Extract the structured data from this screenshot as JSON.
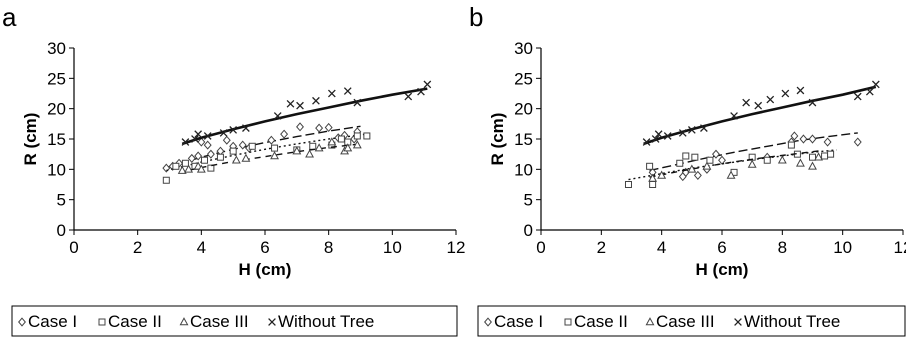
{
  "chart_data": [
    {
      "type": "scatter",
      "panel": "a",
      "xlabel": "H (cm)",
      "ylabel": "R (cm)",
      "xlim": [
        0,
        12
      ],
      "ylim": [
        0,
        30
      ],
      "xticks": [
        0,
        2,
        4,
        6,
        8,
        10,
        12
      ],
      "yticks": [
        0,
        5,
        10,
        15,
        20,
        25,
        30
      ],
      "grid": false,
      "legend_position": "bottom",
      "series": [
        {
          "name": "Case I",
          "marker": "diamond",
          "trend": [
            [
              2.9,
              10.3
            ],
            [
              4.0,
              12.0
            ],
            [
              5.0,
              13.3
            ],
            [
              6.0,
              14.4
            ],
            [
              7.0,
              15.4
            ],
            [
              8.0,
              16.3
            ],
            [
              9.0,
              17.1
            ]
          ],
          "points": [
            [
              2.9,
              10.2
            ],
            [
              3.1,
              10.5
            ],
            [
              3.3,
              11.0
            ],
            [
              3.7,
              11.8
            ],
            [
              3.9,
              12.2
            ],
            [
              4.0,
              14.5
            ],
            [
              4.2,
              14.0
            ],
            [
              4.3,
              12.5
            ],
            [
              4.6,
              13.0
            ],
            [
              4.8,
              14.8
            ],
            [
              5.0,
              13.8
            ],
            [
              5.3,
              14.0
            ],
            [
              5.5,
              13.5
            ],
            [
              6.2,
              14.8
            ],
            [
              6.6,
              15.8
            ],
            [
              7.1,
              17.0
            ],
            [
              7.7,
              16.8
            ],
            [
              8.0,
              16.9
            ],
            [
              8.3,
              15.2
            ],
            [
              8.5,
              15.6
            ],
            [
              8.8,
              15.0
            ],
            [
              8.9,
              16.2
            ]
          ]
        },
        {
          "name": "Case II",
          "marker": "square",
          "trend": [
            [
              2.9,
              9.8
            ],
            [
              4.0,
              11.2
            ],
            [
              5.0,
              12.3
            ],
            [
              6.0,
              13.3
            ],
            [
              7.0,
              14.2
            ],
            [
              8.0,
              15.0
            ],
            [
              9.2,
              15.8
            ]
          ],
          "points": [
            [
              2.9,
              8.2
            ],
            [
              3.2,
              10.5
            ],
            [
              3.5,
              11.0
            ],
            [
              3.8,
              10.5
            ],
            [
              4.1,
              11.5
            ],
            [
              4.3,
              10.2
            ],
            [
              4.6,
              12.0
            ],
            [
              5.0,
              13.0
            ],
            [
              5.6,
              13.8
            ],
            [
              6.3,
              13.5
            ],
            [
              7.0,
              13.2
            ],
            [
              7.5,
              13.8
            ],
            [
              8.1,
              14.0
            ],
            [
              8.4,
              15.0
            ],
            [
              8.6,
              14.5
            ],
            [
              8.9,
              15.5
            ],
            [
              9.2,
              15.5
            ]
          ]
        },
        {
          "name": "Case III",
          "marker": "triangle",
          "trend": [
            [
              3.3,
              9.5
            ],
            [
              4.0,
              10.3
            ],
            [
              5.0,
              11.3
            ],
            [
              6.0,
              12.1
            ],
            [
              7.0,
              12.9
            ],
            [
              8.0,
              13.6
            ],
            [
              9.0,
              14.2
            ]
          ],
          "points": [
            [
              3.4,
              9.8
            ],
            [
              3.6,
              10.0
            ],
            [
              3.9,
              10.5
            ],
            [
              4.0,
              10.0
            ],
            [
              5.1,
              11.5
            ],
            [
              5.4,
              11.8
            ],
            [
              6.3,
              12.2
            ],
            [
              7.0,
              13.0
            ],
            [
              7.4,
              12.5
            ],
            [
              7.7,
              13.5
            ],
            [
              8.1,
              14.5
            ],
            [
              8.5,
              13.0
            ],
            [
              8.6,
              13.5
            ],
            [
              8.9,
              14.0
            ]
          ]
        },
        {
          "name": "Without Tree",
          "marker": "x",
          "trend": [
            [
              3.4,
              14.2
            ],
            [
              4.0,
              15.2
            ],
            [
              5.0,
              16.6
            ],
            [
              6.0,
              17.9
            ],
            [
              7.0,
              19.1
            ],
            [
              8.0,
              20.2
            ],
            [
              9.0,
              21.3
            ],
            [
              10.0,
              22.3
            ],
            [
              11.1,
              23.3
            ]
          ],
          "points": [
            [
              3.5,
              14.5
            ],
            [
              3.8,
              15.0
            ],
            [
              3.9,
              15.8
            ],
            [
              4.2,
              15.5
            ],
            [
              4.7,
              16.0
            ],
            [
              5.0,
              16.5
            ],
            [
              5.4,
              16.8
            ],
            [
              6.4,
              18.8
            ],
            [
              6.8,
              20.8
            ],
            [
              7.1,
              20.5
            ],
            [
              7.6,
              21.3
            ],
            [
              8.1,
              22.5
            ],
            [
              8.6,
              22.9
            ],
            [
              8.9,
              21.0
            ],
            [
              10.5,
              22.0
            ],
            [
              10.9,
              22.8
            ],
            [
              11.1,
              24.0
            ]
          ]
        }
      ]
    },
    {
      "type": "scatter",
      "panel": "b",
      "xlabel": "H (cm)",
      "ylabel": "R (cm)",
      "xlim": [
        0,
        12
      ],
      "ylim": [
        0,
        30
      ],
      "xticks": [
        0,
        2,
        4,
        6,
        8,
        10,
        12
      ],
      "yticks": [
        0,
        5,
        10,
        15,
        20,
        25,
        30
      ],
      "grid": false,
      "legend_position": "bottom",
      "series": [
        {
          "name": "Case I",
          "marker": "diamond",
          "trend": [
            [
              3.6,
              9.8
            ],
            [
              4.5,
              10.8
            ],
            [
              5.5,
              11.9
            ],
            [
              6.5,
              12.9
            ],
            [
              7.5,
              13.8
            ],
            [
              8.5,
              14.7
            ],
            [
              9.5,
              15.4
            ],
            [
              10.5,
              16.0
            ]
          ],
          "points": [
            [
              3.7,
              9.5
            ],
            [
              4.7,
              8.8
            ],
            [
              4.8,
              9.5
            ],
            [
              5.2,
              9.0
            ],
            [
              5.5,
              10.0
            ],
            [
              5.8,
              12.5
            ],
            [
              6.0,
              11.5
            ],
            [
              7.5,
              12.0
            ],
            [
              8.3,
              14.5
            ],
            [
              8.4,
              15.5
            ],
            [
              8.7,
              15.0
            ],
            [
              9.0,
              15.0
            ],
            [
              9.5,
              14.5
            ],
            [
              10.5,
              14.5
            ]
          ]
        },
        {
          "name": "Case II",
          "marker": "square",
          "trend": [
            [
              2.9,
              8.3
            ],
            [
              4.0,
              9.3
            ],
            [
              5.0,
              10.2
            ],
            [
              6.0,
              10.9
            ],
            [
              7.0,
              11.6
            ],
            [
              8.0,
              12.2
            ],
            [
              9.0,
              12.8
            ],
            [
              9.8,
              13.2
            ]
          ],
          "points": [
            [
              2.9,
              7.5
            ],
            [
              3.6,
              10.5
            ],
            [
              3.7,
              7.5
            ],
            [
              4.6,
              11.0
            ],
            [
              4.8,
              12.2
            ],
            [
              5.1,
              12.0
            ],
            [
              5.6,
              11.5
            ],
            [
              6.4,
              9.5
            ],
            [
              7.0,
              12.0
            ],
            [
              7.5,
              11.5
            ],
            [
              8.3,
              14.0
            ],
            [
              8.5,
              12.5
            ],
            [
              9.0,
              12.0
            ],
            [
              9.4,
              12.2
            ],
            [
              9.6,
              12.5
            ]
          ]
        },
        {
          "name": "Case III",
          "marker": "triangle",
          "trend": [
            [
              3.6,
              8.7
            ],
            [
              4.5,
              9.6
            ],
            [
              5.5,
              10.5
            ],
            [
              6.5,
              11.3
            ],
            [
              7.5,
              12.0
            ],
            [
              8.5,
              12.6
            ],
            [
              9.3,
              13.1
            ]
          ],
          "points": [
            [
              3.7,
              8.5
            ],
            [
              4.0,
              9.0
            ],
            [
              5.0,
              10.0
            ],
            [
              5.5,
              10.5
            ],
            [
              6.3,
              9.0
            ],
            [
              7.0,
              10.8
            ],
            [
              8.0,
              11.5
            ],
            [
              8.6,
              11.0
            ],
            [
              9.0,
              10.5
            ],
            [
              9.2,
              12.0
            ]
          ]
        },
        {
          "name": "Without Tree",
          "marker": "x",
          "trend": [
            [
              3.4,
              14.2
            ],
            [
              4.0,
              15.2
            ],
            [
              5.0,
              16.6
            ],
            [
              6.0,
              17.9
            ],
            [
              7.0,
              19.1
            ],
            [
              8.0,
              20.2
            ],
            [
              9.0,
              21.3
            ],
            [
              10.0,
              22.3
            ],
            [
              11.1,
              23.6
            ]
          ],
          "points": [
            [
              3.5,
              14.5
            ],
            [
              3.8,
              15.0
            ],
            [
              3.9,
              15.8
            ],
            [
              4.2,
              15.5
            ],
            [
              4.7,
              16.0
            ],
            [
              5.0,
              16.5
            ],
            [
              5.4,
              16.8
            ],
            [
              6.4,
              18.8
            ],
            [
              6.8,
              21.0
            ],
            [
              7.2,
              20.5
            ],
            [
              7.6,
              21.5
            ],
            [
              8.1,
              22.5
            ],
            [
              8.6,
              23.0
            ],
            [
              9.0,
              21.0
            ],
            [
              10.5,
              22.0
            ],
            [
              10.9,
              22.8
            ],
            [
              11.1,
              24.0
            ]
          ]
        }
      ]
    }
  ],
  "legend": {
    "items": [
      {
        "marker": "diamond",
        "label": "Case I"
      },
      {
        "marker": "square",
        "label": "Case II"
      },
      {
        "marker": "triangle",
        "label": "Case III"
      },
      {
        "marker": "x",
        "label": "Without Tree"
      }
    ]
  }
}
